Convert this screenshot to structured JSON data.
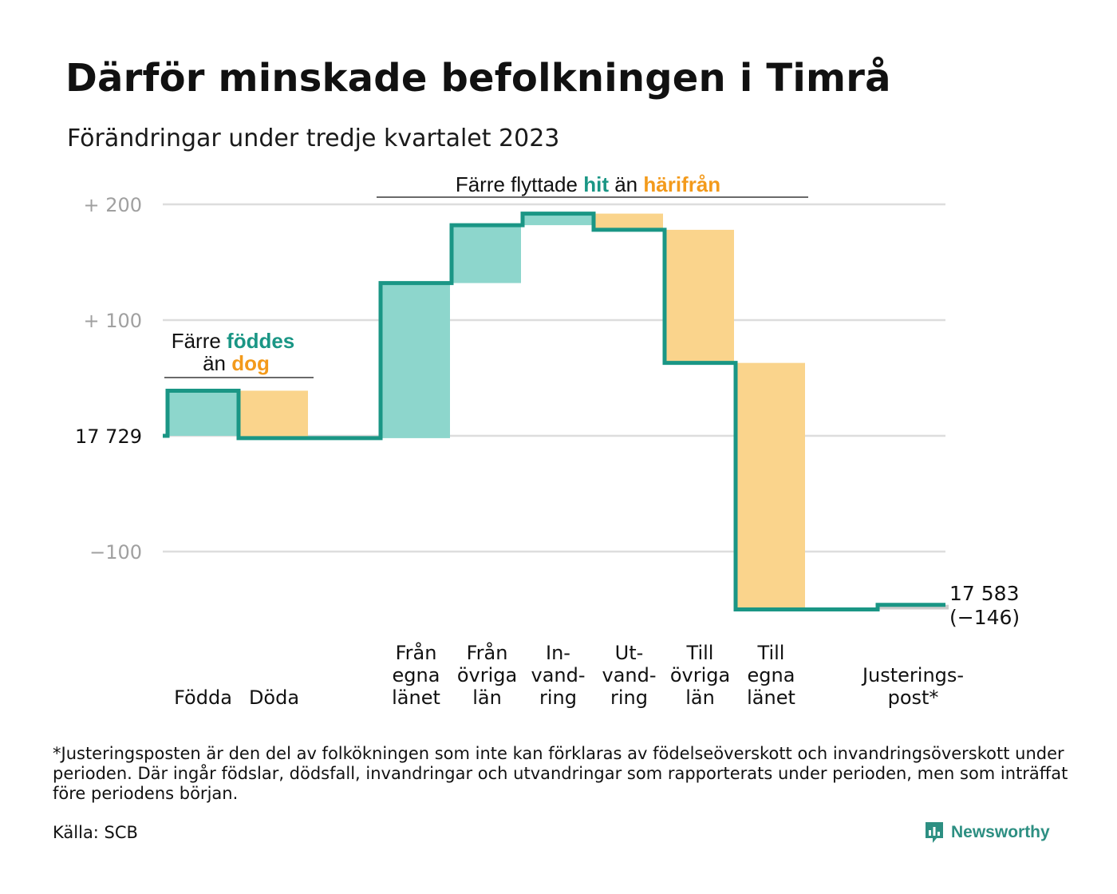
{
  "title": "Därför minskade befolkningen i Timrå",
  "subtitle": "Förändringar under tredje kvartalet 2023",
  "colors": {
    "in": "#8dd6cc",
    "out": "#fad48c",
    "line": "#1a9685",
    "grid": "#dddddd",
    "accent_in": "#1a9685",
    "accent_out": "#f39a1b"
  },
  "chart_data": {
    "type": "waterfall",
    "start_value": 17729,
    "start_label": "17 729",
    "end_value": 17583,
    "end_label": "17 583",
    "end_change_label": "(−146)",
    "ylim": [
      -160,
      210
    ],
    "yticks": [
      {
        "value": 200,
        "label": "+ 200"
      },
      {
        "value": 100,
        "label": "+ 100"
      },
      {
        "value": 0,
        "label": "17 729"
      },
      {
        "value": -100,
        "label": "−100"
      }
    ],
    "steps": [
      {
        "label": [
          "Födda"
        ],
        "change": 39,
        "kind": "in"
      },
      {
        "label": [
          "Döda"
        ],
        "change": -41,
        "kind": "out"
      },
      {
        "label": [],
        "change": 0,
        "kind": "none"
      },
      {
        "label": [
          "Från",
          "egna",
          "länet"
        ],
        "change": 134,
        "kind": "in"
      },
      {
        "label": [
          "Från",
          "övriga",
          "län"
        ],
        "change": 50,
        "kind": "in"
      },
      {
        "label": [
          "In-",
          "vand-",
          "ring"
        ],
        "change": 10,
        "kind": "in"
      },
      {
        "label": [
          "Ut-",
          "vand-",
          "ring"
        ],
        "change": -14,
        "kind": "out"
      },
      {
        "label": [
          "Till",
          "övriga",
          "län"
        ],
        "change": -115,
        "kind": "out"
      },
      {
        "label": [
          "Till",
          "egna",
          "länet"
        ],
        "change": -213,
        "kind": "out"
      },
      {
        "label": [],
        "change": 0,
        "kind": "none"
      },
      {
        "label": [
          "Justerings-",
          "post*"
        ],
        "change": 4,
        "kind": "adj"
      }
    ],
    "annotations": [
      {
        "parts": [
          [
            "Färre ",
            "text"
          ],
          [
            "föddes",
            "in"
          ]
        ],
        "parts2": [
          [
            "än ",
            "text"
          ],
          [
            "dog",
            "out"
          ]
        ]
      },
      {
        "parts": [
          [
            "Färre flyttade ",
            "text"
          ],
          [
            "hit",
            "in"
          ],
          [
            " än ",
            "text"
          ],
          [
            "härifrån",
            "out"
          ]
        ]
      }
    ]
  },
  "footnote": "*Justeringsposten är den del av folkökningen som inte kan förklaras av födelseöverskott och invandringsöverskott under perioden. Där ingår födslar, dödsfall, invandringar och utvandringar som rapporterats under perioden, men som inträffat före periodens början.",
  "source": "Källa: SCB",
  "logo": {
    "name": "Newsworthy",
    "icon": "newsworthy-logo-icon"
  }
}
